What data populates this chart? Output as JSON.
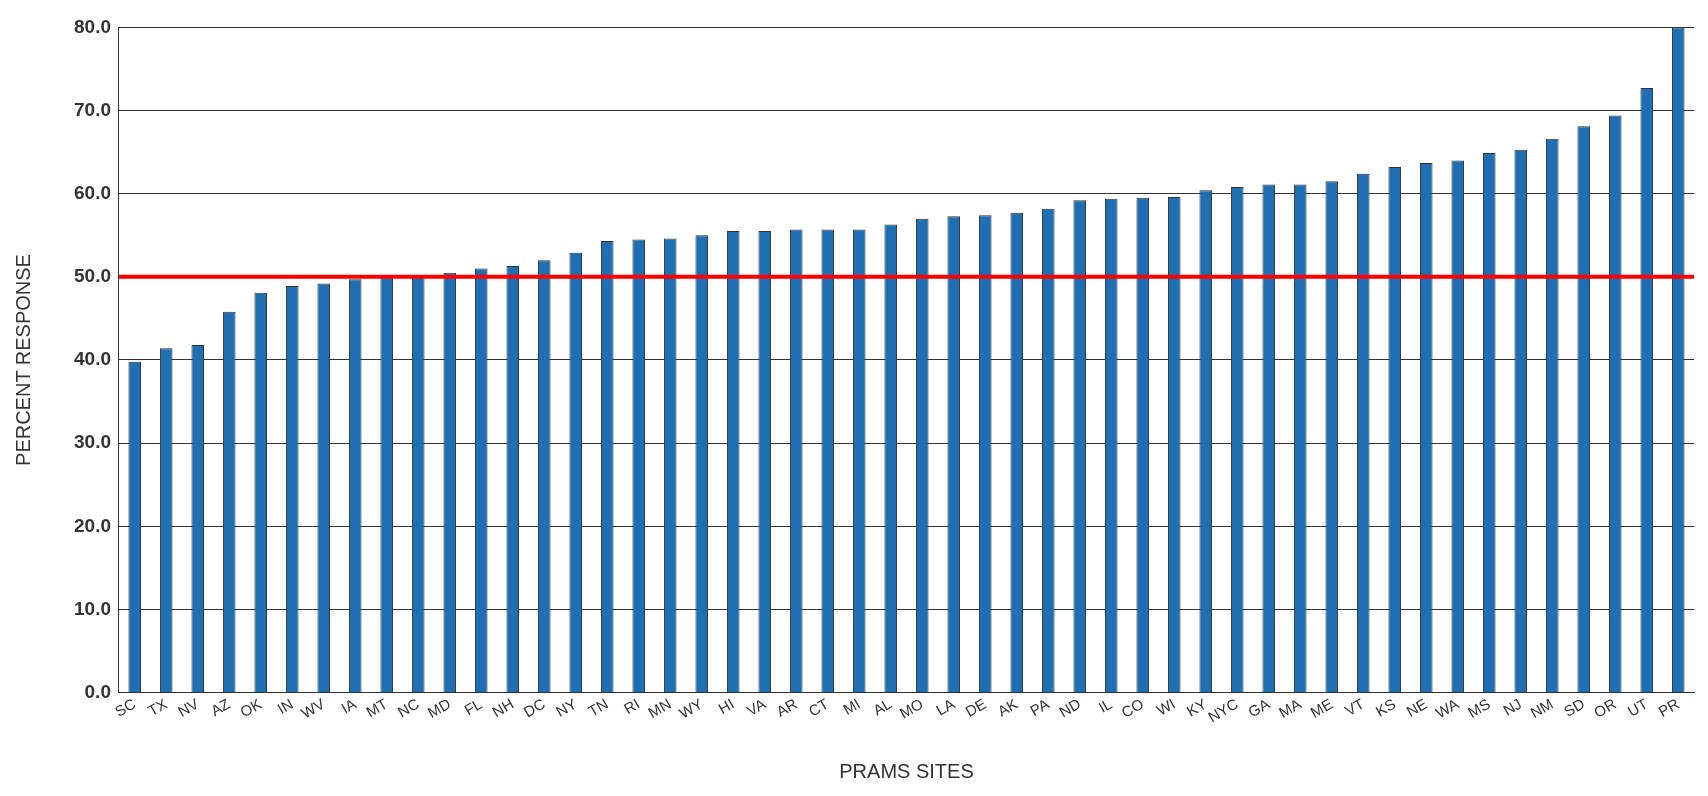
{
  "chart_data": {
    "type": "bar",
    "xlabel": "PRAMS SITES",
    "ylabel": "PERCENT RESPONSE",
    "categories": [
      "SC",
      "TX",
      "NV",
      "AZ",
      "OK",
      "IN",
      "WV",
      "IA",
      "MT",
      "NC",
      "MD",
      "FL",
      "NH",
      "DC",
      "NY",
      "TN",
      "RI",
      "MN",
      "WY",
      "HI",
      "VA",
      "AR",
      "CT",
      "MI",
      "AL",
      "MO",
      "LA",
      "DE",
      "AK",
      "PA",
      "ND",
      "IL",
      "CO",
      "WI",
      "KY",
      "NYC",
      "GA",
      "MA",
      "ME",
      "VT",
      "KS",
      "NE",
      "WA",
      "MS",
      "NJ",
      "NM",
      "SD",
      "OR",
      "UT",
      "PR"
    ],
    "values": [
      39.8,
      41.4,
      41.8,
      45.8,
      48.1,
      48.9,
      49.2,
      49.7,
      49.9,
      50.0,
      50.5,
      51.0,
      51.3,
      52.0,
      52.9,
      54.3,
      54.5,
      54.6,
      55.0,
      55.5,
      55.5,
      55.7,
      55.7,
      55.7,
      56.3,
      57.0,
      57.3,
      57.4,
      57.7,
      58.2,
      59.2,
      59.4,
      59.5,
      59.6,
      60.4,
      60.8,
      61.1,
      61.1,
      61.5,
      62.4,
      63.2,
      63.7,
      64.0,
      64.9,
      65.3,
      66.6,
      68.1,
      69.4,
      72.7,
      80.0
    ],
    "color": "#1f6fb4",
    "ylim": [
      0,
      80
    ],
    "yticks": [
      {
        "value": 0,
        "label": "0.0"
      },
      {
        "value": 10,
        "label": "10.0"
      },
      {
        "value": 20,
        "label": "20.0"
      },
      {
        "value": 30,
        "label": "30.0"
      },
      {
        "value": 40,
        "label": "40.0"
      },
      {
        "value": 50,
        "label": "50.0"
      },
      {
        "value": 60,
        "label": "60.0"
      },
      {
        "value": 70,
        "label": "70.0"
      },
      {
        "value": 80,
        "label": "80.0"
      }
    ],
    "ref_lines": [
      {
        "axis": "y",
        "value": 50,
        "color": "#ff0000"
      }
    ],
    "grid": "y",
    "legend": false
  }
}
